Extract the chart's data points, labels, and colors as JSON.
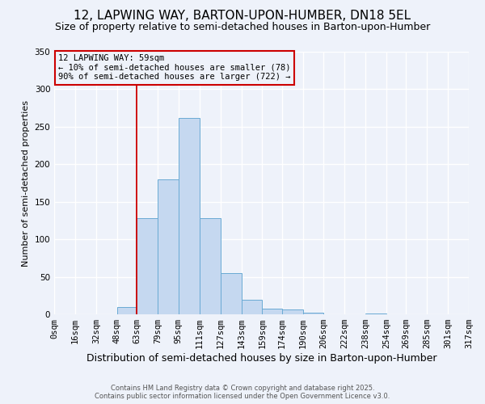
{
  "title": "12, LAPWING WAY, BARTON-UPON-HUMBER, DN18 5EL",
  "subtitle": "Size of property relative to semi-detached houses in Barton-upon-Humber",
  "xlabel": "Distribution of semi-detached houses by size in Barton-upon-Humber",
  "ylabel": "Number of semi-detached properties",
  "bin_labels": [
    "0sqm",
    "16sqm",
    "32sqm",
    "48sqm",
    "63sqm",
    "79sqm",
    "95sqm",
    "111sqm",
    "127sqm",
    "143sqm",
    "159sqm",
    "174sqm",
    "190sqm",
    "206sqm",
    "222sqm",
    "238sqm",
    "254sqm",
    "269sqm",
    "285sqm",
    "301sqm",
    "317sqm"
  ],
  "bar_heights": [
    0,
    0,
    0,
    10,
    128,
    180,
    262,
    128,
    55,
    20,
    8,
    7,
    2,
    0,
    0,
    1,
    0,
    0,
    0,
    0
  ],
  "bar_color": "#c5d8f0",
  "bar_edge_color": "#6aaad4",
  "vline_x": 63,
  "vline_color": "#cc0000",
  "ylim": [
    0,
    350
  ],
  "yticks": [
    0,
    50,
    100,
    150,
    200,
    250,
    300,
    350
  ],
  "annotation_title": "12 LAPWING WAY: 59sqm",
  "annotation_line1": "← 10% of semi-detached houses are smaller (78)",
  "annotation_line2": "90% of semi-detached houses are larger (722) →",
  "annotation_box_color": "#cc0000",
  "footer1": "Contains HM Land Registry data © Crown copyright and database right 2025.",
  "footer2": "Contains public sector information licensed under the Open Government Licence v3.0.",
  "background_color": "#eef2fa",
  "grid_color": "#ffffff",
  "title_fontsize": 11,
  "subtitle_fontsize": 9,
  "xlabel_fontsize": 9,
  "ylabel_fontsize": 8,
  "tick_fontsize": 7.5,
  "annotation_fontsize": 7.5,
  "footer_fontsize": 6
}
